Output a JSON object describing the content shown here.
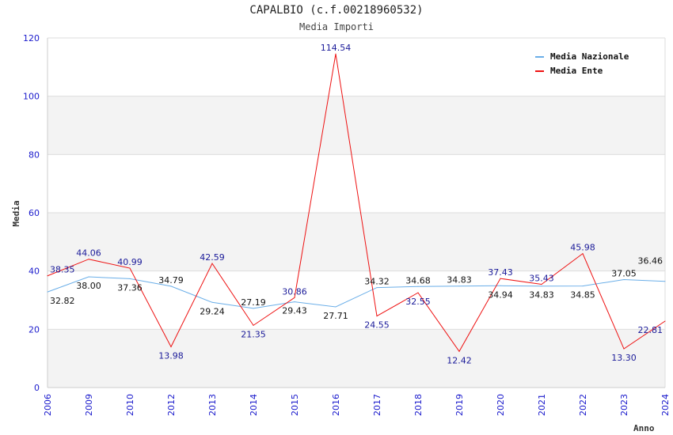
{
  "chart_data": {
    "type": "line",
    "title": "CAPALBIO (c.f.00218960532)",
    "subtitle": "Media Importi",
    "xlabel": "Anno",
    "ylabel": "Media",
    "ylim": [
      0,
      120
    ],
    "yticks": [
      "0",
      "20",
      "40",
      "60",
      "80",
      "100",
      "120"
    ],
    "grid": true,
    "legend_position": "top-right",
    "categories": [
      "2006",
      "2009",
      "2010",
      "2012",
      "2013",
      "2014",
      "2015",
      "2016",
      "2017",
      "2018",
      "2019",
      "2020",
      "2021",
      "2022",
      "2023",
      "2024"
    ],
    "series": [
      {
        "name": "Media Nazionale",
        "color": "#6aaee8",
        "label_color": "#111111",
        "values": [
          32.82,
          38.0,
          37.36,
          34.79,
          29.24,
          27.19,
          29.43,
          27.71,
          34.32,
          34.68,
          34.83,
          34.94,
          34.83,
          34.85,
          37.05,
          36.46
        ],
        "labels": [
          "32.82",
          "38.00",
          "37.36",
          "34.79",
          "29.24",
          "27.19",
          "29.43",
          "27.71",
          "34.32",
          "34.68",
          "34.83",
          "34.94",
          "34.83",
          "34.85",
          "37.05",
          "36.46"
        ]
      },
      {
        "name": "Media Ente",
        "color": "#ee1111",
        "label_color": "#1a1a99",
        "values": [
          38.35,
          44.06,
          40.99,
          13.98,
          42.59,
          21.35,
          30.86,
          114.54,
          24.55,
          32.55,
          12.42,
          37.43,
          35.43,
          45.98,
          13.3,
          22.81
        ],
        "labels": [
          "38.35",
          "44.06",
          "40.99",
          "13.98",
          "42.59",
          "21.35",
          "30.86",
          "114.54",
          "24.55",
          "32.55",
          "12.42",
          "37.43",
          "35.43",
          "45.98",
          "13.30",
          "22.81"
        ]
      }
    ]
  }
}
